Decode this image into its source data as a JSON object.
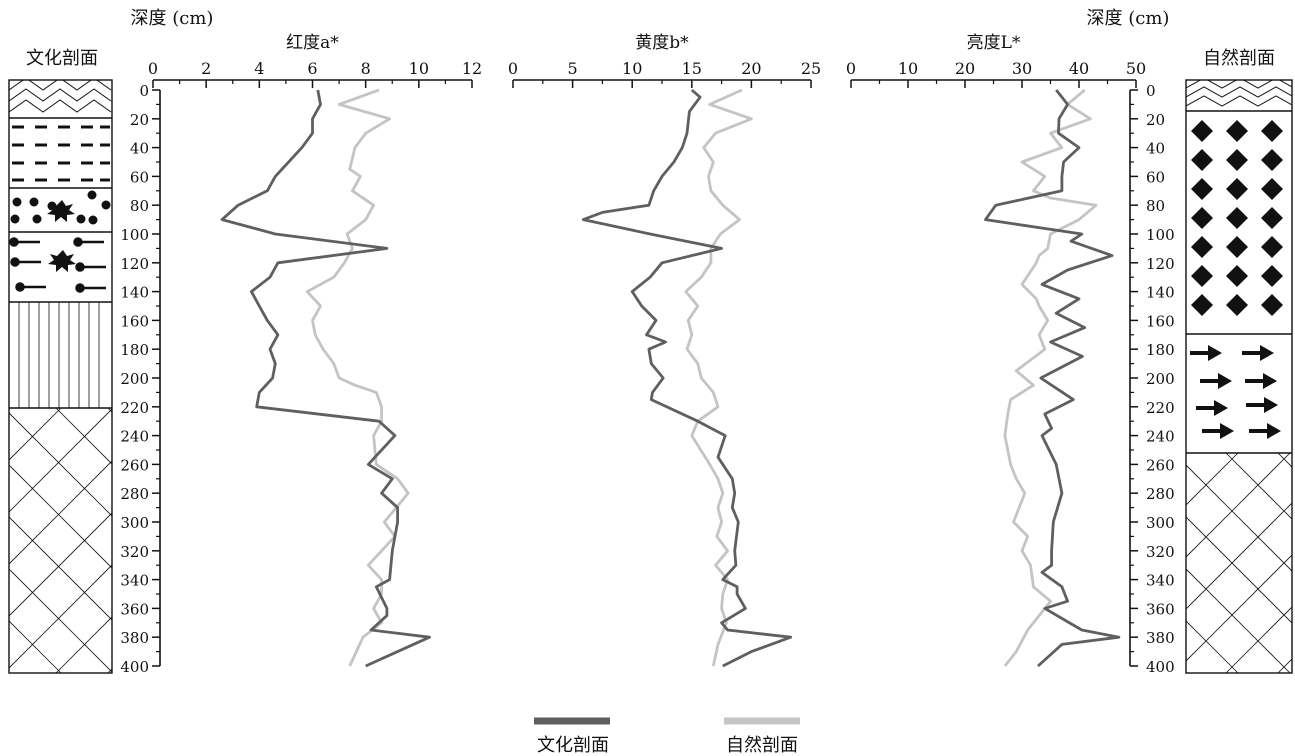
{
  "left_column": {
    "title": "文化剖面",
    "axis_title": "深度 (cm)"
  },
  "right_column": {
    "title": "自然剖面",
    "axis_title": "深度 (cm)"
  },
  "depth_ticks": [
    0,
    20,
    40,
    60,
    80,
    100,
    120,
    140,
    160,
    180,
    200,
    220,
    240,
    260,
    280,
    300,
    320,
    340,
    360,
    380,
    400
  ],
  "legend": [
    {
      "label": "文化剖面",
      "color": "#5f5f5f"
    },
    {
      "label": "自然剖面",
      "color": "#c4c4c4"
    }
  ],
  "colors": {
    "cultural": "#5f5f5f",
    "natural": "#c4c4c4",
    "axis": "#111111"
  },
  "chart_data": [
    {
      "type": "line",
      "title": "红度a*",
      "xlim": [
        0,
        12
      ],
      "xticks": [
        0,
        2,
        4,
        6,
        8,
        10,
        12
      ],
      "ylim": [
        0,
        400
      ],
      "y_reversed": true,
      "series": [
        {
          "name": "文化剖面",
          "points": [
            [
              6.2,
              0
            ],
            [
              6.3,
              10
            ],
            [
              6.0,
              20
            ],
            [
              6.0,
              30
            ],
            [
              5.6,
              40
            ],
            [
              5.1,
              50
            ],
            [
              4.6,
              60
            ],
            [
              4.3,
              70
            ],
            [
              3.2,
              80
            ],
            [
              2.6,
              90
            ],
            [
              4.6,
              100
            ],
            [
              8.8,
              110
            ],
            [
              4.7,
              120
            ],
            [
              4.4,
              130
            ],
            [
              3.7,
              140
            ],
            [
              4.0,
              150
            ],
            [
              4.3,
              160
            ],
            [
              4.7,
              170
            ],
            [
              4.4,
              180
            ],
            [
              4.6,
              190
            ],
            [
              4.5,
              200
            ],
            [
              4.0,
              210
            ],
            [
              3.9,
              220
            ],
            [
              8.5,
              230
            ],
            [
              9.1,
              240
            ],
            [
              8.1,
              260
            ],
            [
              9.0,
              270
            ],
            [
              8.6,
              280
            ],
            [
              9.2,
              290
            ],
            [
              9.2,
              300
            ],
            [
              9.0,
              320
            ],
            [
              8.9,
              340
            ],
            [
              8.4,
              345
            ],
            [
              8.8,
              360
            ],
            [
              8.8,
              365
            ],
            [
              8.2,
              375
            ],
            [
              10.4,
              380
            ],
            [
              8.0,
              400
            ]
          ]
        },
        {
          "name": "自然剖面",
          "points": [
            [
              8.5,
              0
            ],
            [
              7.0,
              10
            ],
            [
              8.9,
              20
            ],
            [
              8.0,
              30
            ],
            [
              7.6,
              40
            ],
            [
              7.4,
              55
            ],
            [
              7.8,
              60
            ],
            [
              7.5,
              70
            ],
            [
              8.3,
              80
            ],
            [
              8.0,
              90
            ],
            [
              7.3,
              100
            ],
            [
              7.5,
              110
            ],
            [
              7.2,
              120
            ],
            [
              6.8,
              130
            ],
            [
              5.8,
              140
            ],
            [
              6.3,
              150
            ],
            [
              6.0,
              160
            ],
            [
              6.1,
              170
            ],
            [
              6.4,
              180
            ],
            [
              6.8,
              190
            ],
            [
              7.0,
              200
            ],
            [
              7.6,
              205
            ],
            [
              8.4,
              210
            ],
            [
              8.6,
              220
            ],
            [
              8.6,
              230
            ],
            [
              8.3,
              240
            ],
            [
              8.4,
              260
            ],
            [
              9.2,
              270
            ],
            [
              9.6,
              280
            ],
            [
              8.7,
              300
            ],
            [
              9.1,
              310
            ],
            [
              8.1,
              330
            ],
            [
              8.6,
              340
            ],
            [
              8.6,
              350
            ],
            [
              8.3,
              360
            ],
            [
              8.6,
              370
            ],
            [
              7.9,
              380
            ],
            [
              7.4,
              400
            ]
          ]
        }
      ]
    },
    {
      "type": "line",
      "title": "黄度b*",
      "xlim": [
        0,
        25
      ],
      "xticks": [
        0,
        5,
        10,
        15,
        20,
        25
      ],
      "ylim": [
        0,
        400
      ],
      "y_reversed": true,
      "series": [
        {
          "name": "文化剖面",
          "points": [
            [
              15.0,
              0
            ],
            [
              15.7,
              5
            ],
            [
              14.8,
              15
            ],
            [
              14.6,
              30
            ],
            [
              14.2,
              40
            ],
            [
              13.5,
              50
            ],
            [
              12.5,
              60
            ],
            [
              11.8,
              70
            ],
            [
              11.4,
              80
            ],
            [
              7.5,
              85
            ],
            [
              5.9,
              90
            ],
            [
              11.5,
              100
            ],
            [
              17.5,
              110
            ],
            [
              12.5,
              120
            ],
            [
              11.5,
              130
            ],
            [
              10.0,
              140
            ],
            [
              10.8,
              150
            ],
            [
              12.0,
              160
            ],
            [
              11.2,
              170
            ],
            [
              12.8,
              175
            ],
            [
              11.4,
              180
            ],
            [
              11.6,
              190
            ],
            [
              12.6,
              200
            ],
            [
              11.7,
              210
            ],
            [
              11.6,
              215
            ],
            [
              15.5,
              230
            ],
            [
              17.8,
              240
            ],
            [
              17.2,
              255
            ],
            [
              18.4,
              270
            ],
            [
              18.6,
              280
            ],
            [
              18.4,
              290
            ],
            [
              18.9,
              300
            ],
            [
              18.6,
              320
            ],
            [
              18.7,
              330
            ],
            [
              17.6,
              340
            ],
            [
              18.8,
              345
            ],
            [
              18.8,
              350
            ],
            [
              19.5,
              360
            ],
            [
              17.5,
              370
            ],
            [
              18.0,
              375
            ],
            [
              23.3,
              380
            ],
            [
              20.0,
              390
            ],
            [
              17.6,
              400
            ]
          ]
        },
        {
          "name": "自然剖面",
          "points": [
            [
              19.2,
              0
            ],
            [
              16.5,
              10
            ],
            [
              20.0,
              20
            ],
            [
              17.0,
              30
            ],
            [
              16.0,
              40
            ],
            [
              16.8,
              50
            ],
            [
              16.4,
              60
            ],
            [
              16.6,
              70
            ],
            [
              17.6,
              80
            ],
            [
              19.0,
              90
            ],
            [
              17.4,
              100
            ],
            [
              16.6,
              110
            ],
            [
              16.6,
              120
            ],
            [
              15.8,
              130
            ],
            [
              14.5,
              140
            ],
            [
              15.5,
              150
            ],
            [
              14.7,
              160
            ],
            [
              15.0,
              170
            ],
            [
              14.6,
              180
            ],
            [
              15.5,
              190
            ],
            [
              15.8,
              200
            ],
            [
              16.8,
              210
            ],
            [
              17.2,
              220
            ],
            [
              15.5,
              230
            ],
            [
              15.0,
              240
            ],
            [
              16.5,
              260
            ],
            [
              17.2,
              270
            ],
            [
              17.6,
              280
            ],
            [
              17.2,
              290
            ],
            [
              17.5,
              300
            ],
            [
              17.1,
              310
            ],
            [
              18.0,
              320
            ],
            [
              17.0,
              330
            ],
            [
              18.0,
              340
            ],
            [
              17.6,
              350
            ],
            [
              17.5,
              360
            ],
            [
              17.9,
              370
            ],
            [
              17.2,
              385
            ],
            [
              16.8,
              400
            ]
          ]
        }
      ]
    },
    {
      "type": "line",
      "title": "亮度L*",
      "xlim": [
        0,
        50
      ],
      "xticks": [
        0,
        10,
        20,
        30,
        40,
        50
      ],
      "ylim": [
        0,
        400
      ],
      "y_reversed": true,
      "series": [
        {
          "name": "文化剖面",
          "points": [
            [
              36.0,
              0
            ],
            [
              38.0,
              10
            ],
            [
              36.5,
              20
            ],
            [
              36.4,
              30
            ],
            [
              40.0,
              40
            ],
            [
              37.3,
              50
            ],
            [
              37.0,
              60
            ],
            [
              37.0,
              70
            ],
            [
              25.4,
              80
            ],
            [
              23.6,
              90
            ],
            [
              40.5,
              100
            ],
            [
              38.6,
              105
            ],
            [
              45.8,
              115
            ],
            [
              38.0,
              125
            ],
            [
              33.5,
              135
            ],
            [
              40.0,
              145
            ],
            [
              36.0,
              155
            ],
            [
              41.0,
              165
            ],
            [
              35.0,
              175
            ],
            [
              40.6,
              185
            ],
            [
              33.3,
              200
            ],
            [
              39.0,
              215
            ],
            [
              34.0,
              225
            ],
            [
              35.2,
              235
            ],
            [
              33.5,
              240
            ],
            [
              36.0,
              260
            ],
            [
              37.0,
              280
            ],
            [
              35.5,
              300
            ],
            [
              35.2,
              320
            ],
            [
              35.2,
              330
            ],
            [
              33.5,
              335
            ],
            [
              37.0,
              345
            ],
            [
              38.0,
              355
            ],
            [
              34.0,
              360
            ],
            [
              40.5,
              375
            ],
            [
              47.0,
              380
            ],
            [
              37.0,
              385
            ],
            [
              32.8,
              400
            ]
          ]
        },
        {
          "name": "自然剖面",
          "points": [
            [
              41.0,
              0
            ],
            [
              38.0,
              10
            ],
            [
              42.0,
              20
            ],
            [
              35.0,
              30
            ],
            [
              37.0,
              40
            ],
            [
              30.0,
              50
            ],
            [
              34.0,
              60
            ],
            [
              32.0,
              70
            ],
            [
              35.0,
              75
            ],
            [
              43.0,
              80
            ],
            [
              40.0,
              90
            ],
            [
              35.0,
              100
            ],
            [
              34.5,
              110
            ],
            [
              33.0,
              115
            ],
            [
              32.5,
              120
            ],
            [
              30.0,
              135
            ],
            [
              32.5,
              145
            ],
            [
              33.0,
              150
            ],
            [
              34.5,
              160
            ],
            [
              33.0,
              170
            ],
            [
              34.0,
              180
            ],
            [
              29.0,
              195
            ],
            [
              32.0,
              205
            ],
            [
              28.0,
              215
            ],
            [
              27.5,
              225
            ],
            [
              27.0,
              240
            ],
            [
              28.0,
              260
            ],
            [
              29.0,
              270
            ],
            [
              30.5,
              280
            ],
            [
              28.5,
              300
            ],
            [
              31.0,
              310
            ],
            [
              30.0,
              320
            ],
            [
              31.5,
              330
            ],
            [
              32.0,
              345
            ],
            [
              35.0,
              355
            ],
            [
              33.0,
              365
            ],
            [
              31.0,
              375
            ],
            [
              29.0,
              390
            ],
            [
              27.0,
              400
            ]
          ]
        }
      ]
    }
  ]
}
